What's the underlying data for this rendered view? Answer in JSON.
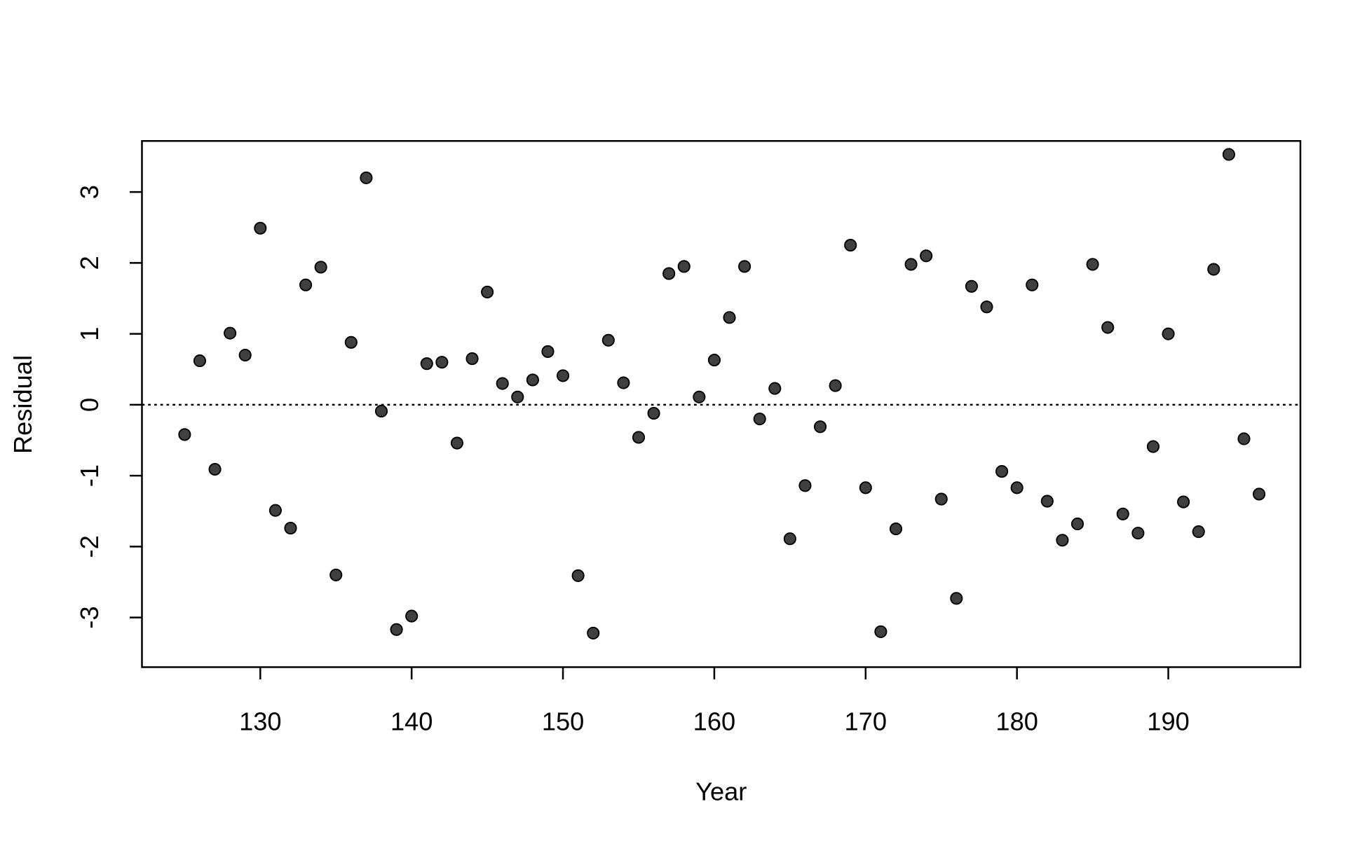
{
  "chart_data": {
    "type": "scatter",
    "xlabel": "Year",
    "ylabel": "Residual",
    "x": [
      125,
      126,
      127,
      128,
      129,
      130,
      131,
      132,
      133,
      134,
      135,
      136,
      137,
      138,
      139,
      140,
      141,
      142,
      143,
      144,
      145,
      146,
      147,
      148,
      149,
      150,
      151,
      152,
      153,
      154,
      155,
      156,
      157,
      158,
      159,
      160,
      161,
      162,
      163,
      164,
      165,
      166,
      167,
      168,
      169,
      170,
      171,
      172,
      173,
      174,
      175,
      176,
      177,
      178,
      179,
      180,
      181,
      182,
      183,
      184,
      185,
      186,
      187,
      188,
      189,
      190,
      191,
      192,
      193,
      194,
      195,
      196
    ],
    "values": [
      -0.42,
      0.62,
      -0.91,
      1.01,
      0.7,
      2.49,
      -1.49,
      -1.74,
      1.69,
      1.94,
      -2.4,
      0.88,
      3.2,
      -0.09,
      -3.17,
      -2.98,
      0.58,
      0.6,
      -0.54,
      0.65,
      1.59,
      0.3,
      0.11,
      0.35,
      0.75,
      0.41,
      -2.41,
      -3.22,
      0.91,
      0.31,
      -0.46,
      -0.12,
      1.85,
      1.95,
      0.11,
      0.63,
      1.23,
      1.95,
      -0.2,
      0.23,
      -1.89,
      -1.14,
      -0.31,
      0.27,
      2.25,
      -1.17,
      -3.2,
      -1.75,
      1.98,
      2.1,
      -1.33,
      -2.73,
      1.67,
      1.38,
      -0.94,
      -1.17,
      1.69,
      -1.36,
      -1.91,
      -1.68,
      1.98,
      1.09,
      -1.54,
      -1.81,
      -0.59,
      1.0,
      -1.37,
      -1.79,
      1.91,
      3.53,
      -0.48,
      -1.26
    ],
    "color": "#404040",
    "xlim": [
      122.18,
      198.73
    ],
    "xticks": [
      130,
      140,
      150,
      160,
      170,
      180,
      190
    ],
    "ylim": [
      -3.7,
      3.72
    ],
    "yticks": [
      -3,
      -2,
      -1,
      0,
      1,
      2,
      3
    ],
    "hline": 0
  }
}
